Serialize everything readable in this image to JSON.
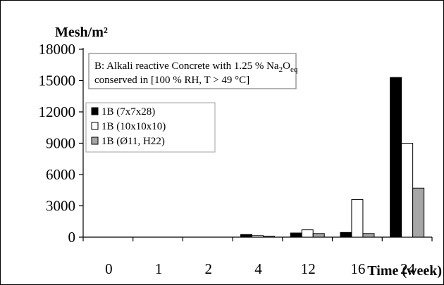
{
  "chart_data": {
    "type": "bar",
    "ylabel": "Mesh/m²",
    "xlabel": "Time (week)",
    "categories": [
      "0",
      "1",
      "2",
      "4",
      "12",
      "16",
      "24"
    ],
    "ylim": [
      0,
      18000
    ],
    "yticks": [
      "0",
      "3000",
      "6000",
      "9000",
      "12000",
      "15000",
      "18000"
    ],
    "grid": false,
    "legend_placement": "upper-left",
    "annotation": {
      "prefix": "B: Alkali reactive Concrete with 1.25 % Na",
      "sub1": "2",
      "mid": "O",
      "sub2": "eq",
      "line2": "conserved in [100 % RH, T > 49 °C]"
    },
    "series": [
      {
        "name": "1B (7x7x28)",
        "color": "#000000",
        "values": [
          0,
          0,
          0,
          250,
          400,
          450,
          15300
        ]
      },
      {
        "name": "1B (10x10x10)",
        "color": "#ffffff",
        "values": [
          0,
          0,
          0,
          150,
          700,
          3600,
          9000
        ]
      },
      {
        "name": "1B (Ø11, H22)",
        "color": "#a6a6a6",
        "values": [
          0,
          0,
          0,
          100,
          350,
          350,
          4700
        ]
      }
    ]
  }
}
